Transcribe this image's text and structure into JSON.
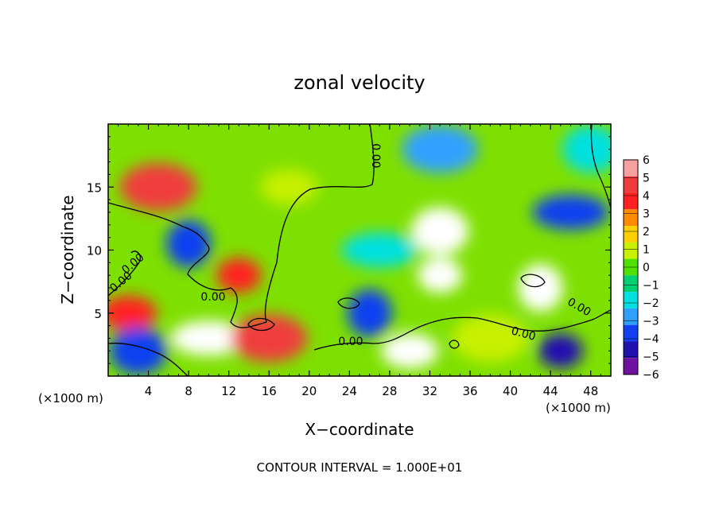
{
  "chart_data": {
    "type": "heatmap",
    "title": "zonal velocity",
    "xlabel": "X−coordinate",
    "ylabel": "Z−coordinate",
    "x_unit_left": "(×1000 m)",
    "x_unit_right": "(×1000 m)",
    "footer": "CONTOUR INTERVAL = 1.000E+01",
    "xlim": [
      0,
      50
    ],
    "ylim": [
      0,
      20
    ],
    "x_ticks": [
      4,
      8,
      12,
      16,
      20,
      24,
      28,
      32,
      36,
      40,
      44,
      48
    ],
    "x_tick_labels": [
      "4",
      "8",
      "12",
      "16",
      "20",
      "24",
      "28",
      "32",
      "36",
      "40",
      "44",
      "48"
    ],
    "y_ticks": [
      5,
      10,
      15
    ],
    "y_tick_labels": [
      "5",
      "10",
      "15"
    ],
    "colorbar": {
      "levels": [
        6,
        5,
        4,
        3,
        2,
        1,
        0,
        -1,
        -2,
        -3,
        -4,
        -5,
        -6
      ],
      "labels": [
        "6",
        "5",
        "4",
        "3",
        "2",
        "1",
        "0",
        "−1",
        "−2",
        "−3",
        "−4",
        "−5",
        "−6"
      ],
      "colors": [
        "#f7a0a0",
        "#f03c3c",
        "#ff2020",
        "#ff8c00",
        "#ffd000",
        "#c8f000",
        "#50e000",
        "#00d070",
        "#00e0e0",
        "#30a0ff",
        "#1040f0",
        "#2010b0",
        "#7010a0"
      ]
    },
    "contour_labels": [
      "0.00",
      "0.00",
      "0.00",
      "0.00",
      "0.00",
      "0.00",
      "0.00"
    ],
    "field_centers": [
      {
        "x": 5,
        "z": 15,
        "value": 4.5
      },
      {
        "x": 2,
        "z": 5,
        "value": 4
      },
      {
        "x": 8,
        "z": 10.5,
        "value": -4
      },
      {
        "x": 10,
        "z": 3,
        "value": 6.5
      },
      {
        "x": 3,
        "z": 2,
        "value": -4
      },
      {
        "x": 13,
        "z": 8,
        "value": 4
      },
      {
        "x": 16,
        "z": 3,
        "value": 5
      },
      {
        "x": 18,
        "z": 15,
        "value": 1
      },
      {
        "x": 26,
        "z": 5,
        "value": -4
      },
      {
        "x": 27,
        "z": 10,
        "value": -2
      },
      {
        "x": 33,
        "z": 11.5,
        "value": -7
      },
      {
        "x": 33,
        "z": 8,
        "value": -7
      },
      {
        "x": 33,
        "z": 18,
        "value": -3
      },
      {
        "x": 30,
        "z": 2,
        "value": 8
      },
      {
        "x": 43,
        "z": 7,
        "value": 7
      },
      {
        "x": 46,
        "z": 13,
        "value": -4
      },
      {
        "x": 48,
        "z": 18,
        "value": -2
      },
      {
        "x": 45,
        "z": 2,
        "value": -5
      },
      {
        "x": 38,
        "z": 3,
        "value": 0.5
      }
    ]
  }
}
